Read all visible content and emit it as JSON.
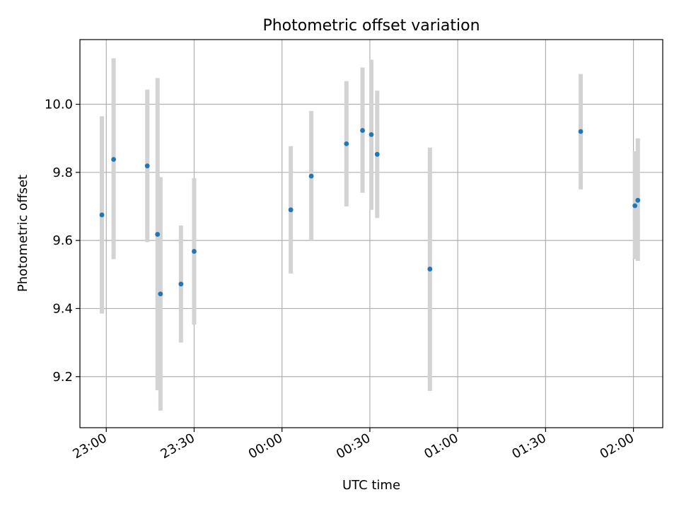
{
  "chart_data": {
    "type": "scatter",
    "title": "Photometric offset variation",
    "xlabel": "UTC time",
    "ylabel": "Photometric offset",
    "x_axis_kind": "time",
    "xlim": [
      "22:51",
      "02:10"
    ],
    "ylim": [
      9.05,
      10.19
    ],
    "xticks": [
      "23:00",
      "23:30",
      "00:00",
      "00:30",
      "01:00",
      "01:30",
      "02:00"
    ],
    "yticks": [
      "9.2",
      "9.4",
      "9.6",
      "9.8",
      "10.0"
    ],
    "grid": true,
    "point_color": "#1f77b4",
    "errorbar_color": "#d3d3d3",
    "series": [
      {
        "points": [
          {
            "time": "22:58:30",
            "y": 9.675,
            "ylo": 9.385,
            "yhi": 9.965
          },
          {
            "time": "23:02:30",
            "y": 9.838,
            "ylo": 9.545,
            "yhi": 10.135
          },
          {
            "time": "23:14:00",
            "y": 9.819,
            "ylo": 9.595,
            "yhi": 10.043
          },
          {
            "time": "23:17:30",
            "y": 9.618,
            "ylo": 9.16,
            "yhi": 10.077
          },
          {
            "time": "23:18:30",
            "y": 9.443,
            "ylo": 9.1,
            "yhi": 9.786
          },
          {
            "time": "23:25:30",
            "y": 9.472,
            "ylo": 9.3,
            "yhi": 9.644
          },
          {
            "time": "23:30:00",
            "y": 9.568,
            "ylo": 9.353,
            "yhi": 9.783
          },
          {
            "time": "00:03:00",
            "y": 9.69,
            "ylo": 9.503,
            "yhi": 9.877
          },
          {
            "time": "00:10:00",
            "y": 9.789,
            "ylo": 9.598,
            "yhi": 9.98
          },
          {
            "time": "00:22:00",
            "y": 9.884,
            "ylo": 9.7,
            "yhi": 10.068
          },
          {
            "time": "00:27:30",
            "y": 9.923,
            "ylo": 9.74,
            "yhi": 10.108
          },
          {
            "time": "00:30:30",
            "y": 9.911,
            "ylo": 9.69,
            "yhi": 10.131
          },
          {
            "time": "00:32:30",
            "y": 9.853,
            "ylo": 9.666,
            "yhi": 10.04
          },
          {
            "time": "00:50:30",
            "y": 9.516,
            "ylo": 9.158,
            "yhi": 9.873
          },
          {
            "time": "01:42:00",
            "y": 9.92,
            "ylo": 9.75,
            "yhi": 10.089
          },
          {
            "time": "02:00:30",
            "y": 9.702,
            "ylo": 9.545,
            "yhi": 9.862
          },
          {
            "time": "02:01:30",
            "y": 9.718,
            "ylo": 9.54,
            "yhi": 9.9
          }
        ]
      }
    ]
  }
}
